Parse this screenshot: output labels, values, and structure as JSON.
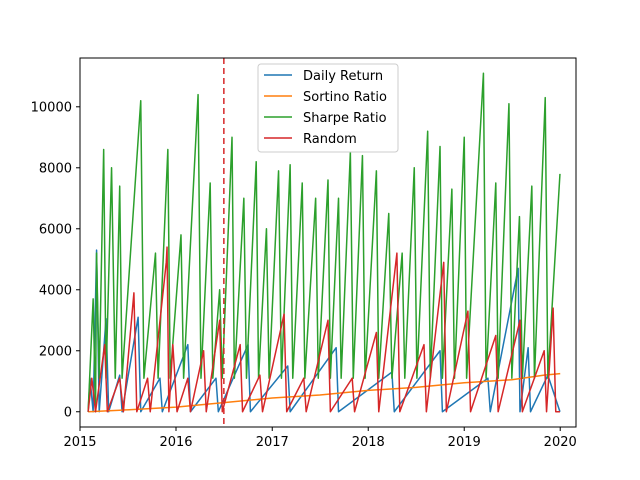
{
  "chart_data": {
    "type": "line",
    "title": "",
    "xlabel": "",
    "ylabel": "",
    "xlim": [
      "2015-01-01",
      "2020-03-01"
    ],
    "ylim": [
      -500,
      11600
    ],
    "x_ticks": [
      "2015",
      "2016",
      "2017",
      "2018",
      "2019",
      "2020"
    ],
    "y_ticks": [
      0,
      2000,
      4000,
      6000,
      8000,
      10000
    ],
    "grid": false,
    "legend_position": "top-center",
    "vline": {
      "x": "2016-07-01",
      "style": "dashed",
      "color": "#d62728"
    },
    "series": [
      {
        "name": "Daily Return",
        "color": "#1f77b4",
        "points": [
          [
            "2015-02-01",
            0
          ],
          [
            "2015-02-08",
            1100
          ],
          [
            "2015-02-20",
            0
          ],
          [
            "2015-03-05",
            5300
          ],
          [
            "2015-03-15",
            0
          ],
          [
            "2015-04-10",
            3050
          ],
          [
            "2015-04-20",
            0
          ],
          [
            "2015-06-01",
            1200
          ],
          [
            "2015-06-10",
            0
          ],
          [
            "2015-08-10",
            3100
          ],
          [
            "2015-08-20",
            0
          ],
          [
            "2015-11-01",
            1100
          ],
          [
            "2015-11-10",
            0
          ],
          [
            "2016-02-15",
            2200
          ],
          [
            "2016-02-25",
            0
          ],
          [
            "2016-06-01",
            1100
          ],
          [
            "2016-06-10",
            0
          ],
          [
            "2016-10-01",
            2200
          ],
          [
            "2016-10-10",
            0
          ],
          [
            "2017-03-01",
            1500
          ],
          [
            "2017-03-10",
            0
          ],
          [
            "2017-09-01",
            2100
          ],
          [
            "2017-09-10",
            0
          ],
          [
            "2018-04-01",
            1300
          ],
          [
            "2018-04-10",
            0
          ],
          [
            "2018-10-01",
            2000
          ],
          [
            "2018-10-10",
            0
          ],
          [
            "2019-04-01",
            1100
          ],
          [
            "2019-04-10",
            0
          ],
          [
            "2019-07-25",
            4700
          ],
          [
            "2019-08-01",
            0
          ],
          [
            "2019-09-01",
            2100
          ],
          [
            "2019-09-10",
            0
          ],
          [
            "2019-11-15",
            1200
          ],
          [
            "2019-12-31",
            0
          ]
        ]
      },
      {
        "name": "Sortino Ratio",
        "color": "#ff7f0e",
        "points": [
          [
            "2015-02-01",
            0
          ],
          [
            "2015-06-01",
            50
          ],
          [
            "2016-01-01",
            150
          ],
          [
            "2016-07-01",
            300
          ],
          [
            "2017-01-01",
            450
          ],
          [
            "2017-07-01",
            550
          ],
          [
            "2018-01-01",
            700
          ],
          [
            "2018-07-01",
            800
          ],
          [
            "2019-01-01",
            950
          ],
          [
            "2019-07-01",
            1050
          ],
          [
            "2019-11-01",
            1200
          ],
          [
            "2020-01-01",
            1250
          ]
        ]
      },
      {
        "name": "Sharpe Ratio",
        "color": "#2ca02c",
        "points": [
          [
            "2015-02-01",
            0
          ],
          [
            "2015-02-20",
            3700
          ],
          [
            "2015-03-01",
            0
          ],
          [
            "2015-03-05",
            5200
          ],
          [
            "2015-03-15",
            1100
          ],
          [
            "2015-04-01",
            8600
          ],
          [
            "2015-04-10",
            1100
          ],
          [
            "2015-05-01",
            8000
          ],
          [
            "2015-05-15",
            1100
          ],
          [
            "2015-06-01",
            7400
          ],
          [
            "2015-06-10",
            1100
          ],
          [
            "2015-08-20",
            10200
          ],
          [
            "2015-09-01",
            1100
          ],
          [
            "2015-10-15",
            5200
          ],
          [
            "2015-10-25",
            1100
          ],
          [
            "2015-12-01",
            8600
          ],
          [
            "2015-12-10",
            1100
          ],
          [
            "2016-01-20",
            5800
          ],
          [
            "2016-01-30",
            1100
          ],
          [
            "2016-03-25",
            10400
          ],
          [
            "2016-04-05",
            1100
          ],
          [
            "2016-05-10",
            7500
          ],
          [
            "2016-05-20",
            1100
          ],
          [
            "2016-06-15",
            4000
          ],
          [
            "2016-06-25",
            1100
          ],
          [
            "2016-08-01",
            9000
          ],
          [
            "2016-08-10",
            1100
          ],
          [
            "2016-09-15",
            7000
          ],
          [
            "2016-09-25",
            1100
          ],
          [
            "2016-11-01",
            8200
          ],
          [
            "2016-11-10",
            1100
          ],
          [
            "2016-12-10",
            6000
          ],
          [
            "2016-12-20",
            1100
          ],
          [
            "2017-01-25",
            7900
          ],
          [
            "2017-02-05",
            1100
          ],
          [
            "2017-03-10",
            8100
          ],
          [
            "2017-03-20",
            1100
          ],
          [
            "2017-04-25",
            7500
          ],
          [
            "2017-05-05",
            1100
          ],
          [
            "2017-06-15",
            7000
          ],
          [
            "2017-06-25",
            1100
          ],
          [
            "2017-08-01",
            7600
          ],
          [
            "2017-08-10",
            1100
          ],
          [
            "2017-09-10",
            7000
          ],
          [
            "2017-09-20",
            1100
          ],
          [
            "2017-10-25",
            8500
          ],
          [
            "2017-11-05",
            1100
          ],
          [
            "2017-12-10",
            8400
          ],
          [
            "2017-12-20",
            1100
          ],
          [
            "2018-02-01",
            7900
          ],
          [
            "2018-02-10",
            1100
          ],
          [
            "2018-03-20",
            6500
          ],
          [
            "2018-04-01",
            1100
          ],
          [
            "2018-05-10",
            5200
          ],
          [
            "2018-05-20",
            1100
          ],
          [
            "2018-06-25",
            8000
          ],
          [
            "2018-07-05",
            1100
          ],
          [
            "2018-08-15",
            9200
          ],
          [
            "2018-08-25",
            1100
          ],
          [
            "2018-10-01",
            8700
          ],
          [
            "2018-10-10",
            1100
          ],
          [
            "2018-11-15",
            7300
          ],
          [
            "2018-11-25",
            1100
          ],
          [
            "2019-01-01",
            9000
          ],
          [
            "2019-01-10",
            1100
          ],
          [
            "2019-03-15",
            11100
          ],
          [
            "2019-03-25",
            1100
          ],
          [
            "2019-05-01",
            7500
          ],
          [
            "2019-05-10",
            1100
          ],
          [
            "2019-06-20",
            10100
          ],
          [
            "2019-07-01",
            1100
          ],
          [
            "2019-07-30",
            6400
          ],
          [
            "2019-08-10",
            1100
          ],
          [
            "2019-09-15",
            7400
          ],
          [
            "2019-09-25",
            1100
          ],
          [
            "2019-11-05",
            10300
          ],
          [
            "2019-11-15",
            1100
          ],
          [
            "2019-12-31",
            7800
          ]
        ]
      },
      {
        "name": "Random",
        "color": "#d62728",
        "points": [
          [
            "2015-02-01",
            0
          ],
          [
            "2015-02-15",
            1100
          ],
          [
            "2015-03-01",
            0
          ],
          [
            "2015-04-05",
            2200
          ],
          [
            "2015-04-15",
            0
          ],
          [
            "2015-06-01",
            1100
          ],
          [
            "2015-06-15",
            0
          ],
          [
            "2015-07-25",
            3900
          ],
          [
            "2015-08-05",
            0
          ],
          [
            "2015-09-15",
            1100
          ],
          [
            "2015-09-25",
            0
          ],
          [
            "2015-11-25",
            4900
          ],
          [
            "2015-11-28",
            5400
          ],
          [
            "2015-12-05",
            0
          ],
          [
            "2015-12-20",
            2200
          ],
          [
            "2016-01-05",
            0
          ],
          [
            "2016-02-15",
            1100
          ],
          [
            "2016-02-25",
            0
          ],
          [
            "2016-04-15",
            2000
          ],
          [
            "2016-04-25",
            0
          ],
          [
            "2016-06-15",
            3000
          ],
          [
            "2016-06-25",
            0
          ],
          [
            "2016-09-01",
            2200
          ],
          [
            "2016-09-10",
            0
          ],
          [
            "2016-11-15",
            1200
          ],
          [
            "2016-11-25",
            0
          ],
          [
            "2017-02-15",
            3200
          ],
          [
            "2017-02-25",
            0
          ],
          [
            "2017-05-01",
            1100
          ],
          [
            "2017-05-10",
            0
          ],
          [
            "2017-08-01",
            3000
          ],
          [
            "2017-08-10",
            0
          ],
          [
            "2017-11-01",
            1100
          ],
          [
            "2017-11-10",
            0
          ],
          [
            "2018-02-01",
            2600
          ],
          [
            "2018-02-10",
            0
          ],
          [
            "2018-04-20",
            5200
          ],
          [
            "2018-05-01",
            0
          ],
          [
            "2018-08-01",
            2200
          ],
          [
            "2018-08-10",
            0
          ],
          [
            "2018-10-15",
            4900
          ],
          [
            "2018-10-25",
            0
          ],
          [
            "2019-01-15",
            3300
          ],
          [
            "2019-01-25",
            0
          ],
          [
            "2019-05-01",
            2500
          ],
          [
            "2019-05-10",
            0
          ],
          [
            "2019-08-01",
            3000
          ],
          [
            "2019-08-10",
            0
          ],
          [
            "2019-11-01",
            2000
          ],
          [
            "2019-11-10",
            0
          ],
          [
            "2019-12-05",
            3400
          ],
          [
            "2019-12-15",
            0
          ],
          [
            "2019-12-31",
            0
          ]
        ]
      }
    ]
  }
}
